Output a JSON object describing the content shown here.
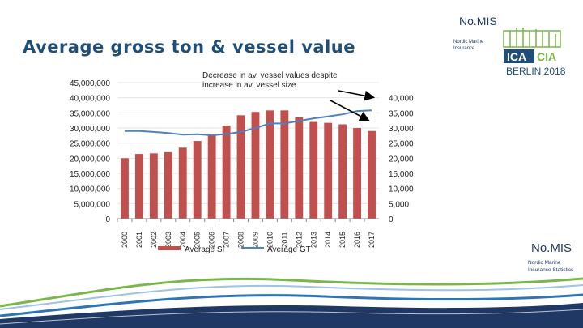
{
  "slide": {
    "title": "Average gross ton & vessel value",
    "brand_top": "No.MIS",
    "brand_top_sub": "Nordic Marine Insurance",
    "brand_bottom": "No.MIS",
    "brand_bottom_sub": "Nordic Marine Insurance Statistics",
    "logo_text_a": "ICA",
    "logo_text_b": "CIA",
    "logo_city": "BERLIN 2018",
    "annotation": "Decrease in av. vessel values despite increase in av. vessel size"
  },
  "colors": {
    "bar": "#c0504d",
    "line": "#4f81bd",
    "title": "#1f4e79",
    "logo_green": "#7ab648",
    "logo_blue": "#1f4e79"
  },
  "chart_data": {
    "type": "bar",
    "title": "",
    "categories": [
      "2000",
      "2001",
      "2002",
      "2003",
      "2004",
      "2005",
      "2006",
      "2007",
      "2008",
      "2009",
      "2010",
      "2011",
      "2012",
      "2013",
      "2014",
      "2015",
      "2016",
      "2017"
    ],
    "series": [
      {
        "name": "Average SI",
        "type": "bar",
        "axis": "left",
        "values": [
          20000000,
          21400000,
          21600000,
          22000000,
          23500000,
          25700000,
          27800000,
          30800000,
          34200000,
          35300000,
          35800000,
          35800000,
          33500000,
          32000000,
          31700000,
          31200000,
          30000000,
          29000000
        ]
      },
      {
        "name": "Average GT",
        "type": "line",
        "axis": "right",
        "values": [
          29000,
          29000,
          28700,
          28300,
          27800,
          27900,
          27600,
          28000,
          28700,
          30000,
          31500,
          31500,
          32300,
          33200,
          33800,
          34500,
          35600,
          35800
        ]
      }
    ],
    "left_axis": {
      "ylim": [
        0,
        45000000
      ],
      "ticks": [
        "0",
        "5,000,000",
        "10,000,000",
        "15,000,000",
        "20,000,000",
        "25,000,000",
        "30,000,000",
        "35,000,000",
        "40,000,000",
        "45,000,000"
      ]
    },
    "right_axis": {
      "ylim": [
        0,
        45000
      ],
      "ticks": [
        "0",
        "5,000",
        "10,000",
        "15,000",
        "20,000",
        "25,000",
        "30,000",
        "35,000",
        "40,000"
      ]
    },
    "legend": [
      "Average SI",
      "Average GT"
    ],
    "legend_position": "bottom"
  }
}
